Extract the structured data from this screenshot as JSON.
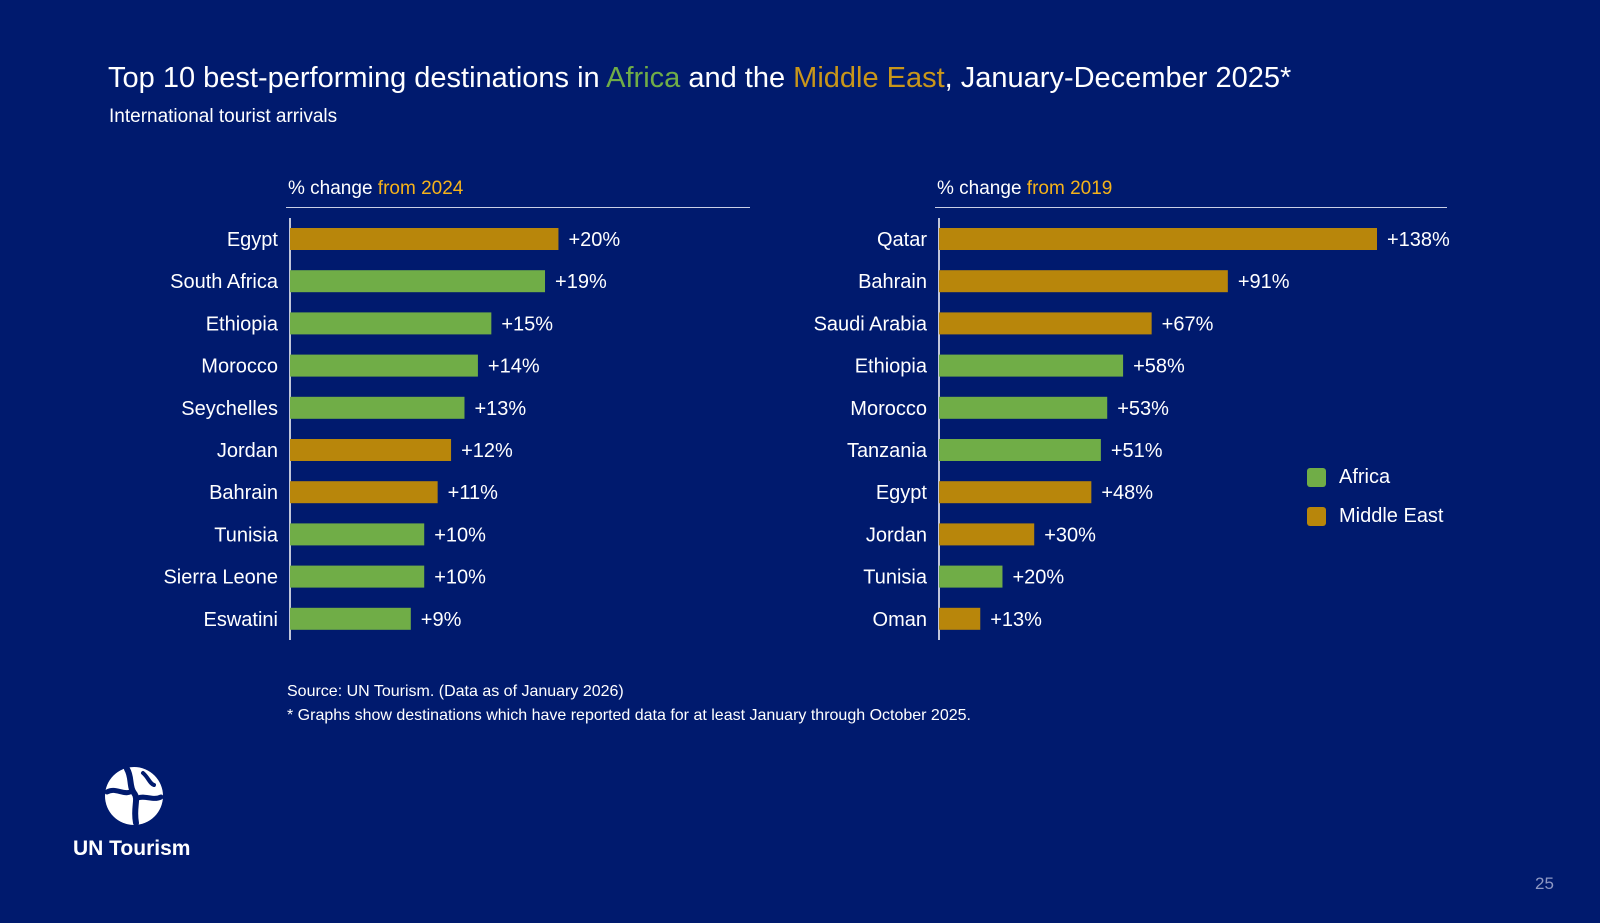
{
  "header": {
    "title_part1": "Top 10 best-performing destinations in ",
    "title_africa": "Africa",
    "title_part2": " and the ",
    "title_me": "Middle East",
    "title_part3": ", January-December 2025*",
    "subtitle": "International tourist arrivals"
  },
  "colors": {
    "background": "#001a6e",
    "africa": "#70ad47",
    "middle_east": "#b8860b",
    "highlight": "#f5b21a",
    "title_africa": "#70ad47",
    "title_me": "#c9961a"
  },
  "chart_data": [
    {
      "type": "bar",
      "orientation": "horizontal",
      "title_prefix": "% change ",
      "title_highlight": "from 2024",
      "categories": [
        "Egypt",
        "South Africa",
        "Ethiopia",
        "Morocco",
        "Seychelles",
        "Jordan",
        "Bahrain",
        "Tunisia",
        "Sierra Leone",
        "Eswatini"
      ],
      "values": [
        20,
        19,
        15,
        14,
        13,
        12,
        11,
        10,
        10,
        9
      ],
      "labels": [
        "+20%",
        "+19%",
        "+15%",
        "+14%",
        "+13%",
        "+12%",
        "+11%",
        "+10%",
        "+10%",
        "+9%"
      ],
      "regions": [
        "Middle East",
        "Africa",
        "Africa",
        "Africa",
        "Africa",
        "Middle East",
        "Middle East",
        "Africa",
        "Africa",
        "Africa"
      ],
      "xlim": [
        0,
        45
      ]
    },
    {
      "type": "bar",
      "orientation": "horizontal",
      "title_prefix": "% change ",
      "title_highlight": "from 2019",
      "categories": [
        "Qatar",
        "Bahrain",
        "Saudi Arabia",
        "Ethiopia",
        "Morocco",
        "Tanzania",
        "Egypt",
        "Jordan",
        "Tunisia",
        "Oman"
      ],
      "values": [
        138,
        91,
        67,
        58,
        53,
        51,
        48,
        30,
        20,
        13
      ],
      "labels": [
        "+138%",
        "+91%",
        "+67%",
        "+58%",
        "+53%",
        "+51%",
        "+48%",
        "+30%",
        "+20%",
        "+13%"
      ],
      "regions": [
        "Middle East",
        "Middle East",
        "Middle East",
        "Africa",
        "Africa",
        "Africa",
        "Middle East",
        "Middle East",
        "Africa",
        "Middle East"
      ],
      "xlim": [
        0,
        138
      ]
    }
  ],
  "legend": [
    {
      "label": "Africa",
      "color": "#70ad47"
    },
    {
      "label": "Middle East",
      "color": "#b8860b"
    }
  ],
  "notes": {
    "source": "Source: UN Tourism. (Data as of January 2026)",
    "footnote": "* Graphs show destinations which have reported data for at least January through October 2025."
  },
  "logo": {
    "text": "UN Tourism"
  },
  "page_number": "25"
}
